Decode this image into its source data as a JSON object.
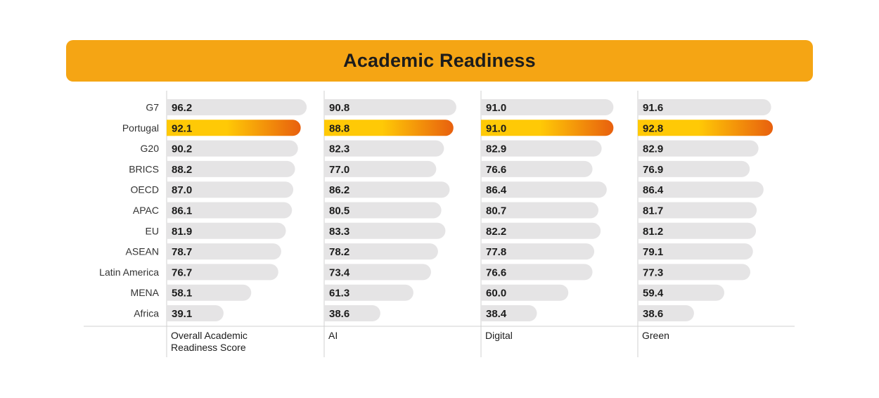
{
  "title": "Academic Readiness",
  "colors": {
    "banner": "#F5A514",
    "bar_default": "#E5E4E5",
    "highlight_start": "#FFC906",
    "highlight_end": "#E8600E",
    "text": "#1c1c1c",
    "label": "#333333",
    "divider": "#d0d0d0"
  },
  "chart_data": {
    "type": "bar",
    "orientation": "horizontal",
    "categories": [
      "G7",
      "Portugal",
      "G20",
      "BRICS",
      "OECD",
      "APAC",
      "EU",
      "ASEAN",
      "Latin America",
      "MENA",
      "Africa"
    ],
    "highlight_category": "Portugal",
    "xlim": [
      0,
      100
    ],
    "grid": false,
    "panels": [
      {
        "name": "Overall Academic Readiness Score",
        "values": [
          96.2,
          92.1,
          90.2,
          88.2,
          87.0,
          86.1,
          81.9,
          78.7,
          76.7,
          58.1,
          39.1
        ]
      },
      {
        "name": "AI",
        "values": [
          90.8,
          88.8,
          82.3,
          77.0,
          86.2,
          80.5,
          83.3,
          78.2,
          73.4,
          61.3,
          38.6
        ]
      },
      {
        "name": "Digital",
        "values": [
          91.0,
          91.0,
          82.9,
          76.6,
          86.4,
          80.7,
          82.2,
          77.8,
          76.6,
          60.0,
          38.4
        ]
      },
      {
        "name": "Green",
        "values": [
          91.6,
          92.8,
          82.9,
          76.9,
          86.4,
          81.7,
          81.2,
          79.1,
          77.3,
          59.4,
          38.6
        ]
      }
    ]
  }
}
